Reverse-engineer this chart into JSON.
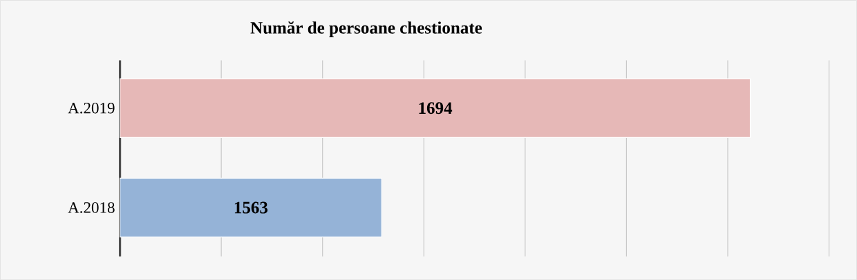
{
  "chart_data": {
    "type": "bar",
    "orientation": "horizontal",
    "title": "Număr de persoane chestionate",
    "categories": [
      "A.2019",
      "A.2018"
    ],
    "values": [
      1694,
      1563
    ],
    "colors": [
      "#e6b8b7",
      "#95b3d7"
    ],
    "xlim": [
      1470,
      1722
    ],
    "xticks": [
      {
        "value": 1470,
        "label": null
      },
      {
        "value": 1506,
        "label": null
      },
      {
        "value": 1542,
        "label": null
      },
      {
        "value": 1578,
        "label": null
      },
      {
        "value": 1614,
        "label": null
      },
      {
        "value": 1650,
        "label": null
      },
      {
        "value": 1686,
        "label": null
      },
      {
        "value": 1722,
        "label": null
      }
    ],
    "grid": "x",
    "tick_labels": "y",
    "data_labels": true
  }
}
